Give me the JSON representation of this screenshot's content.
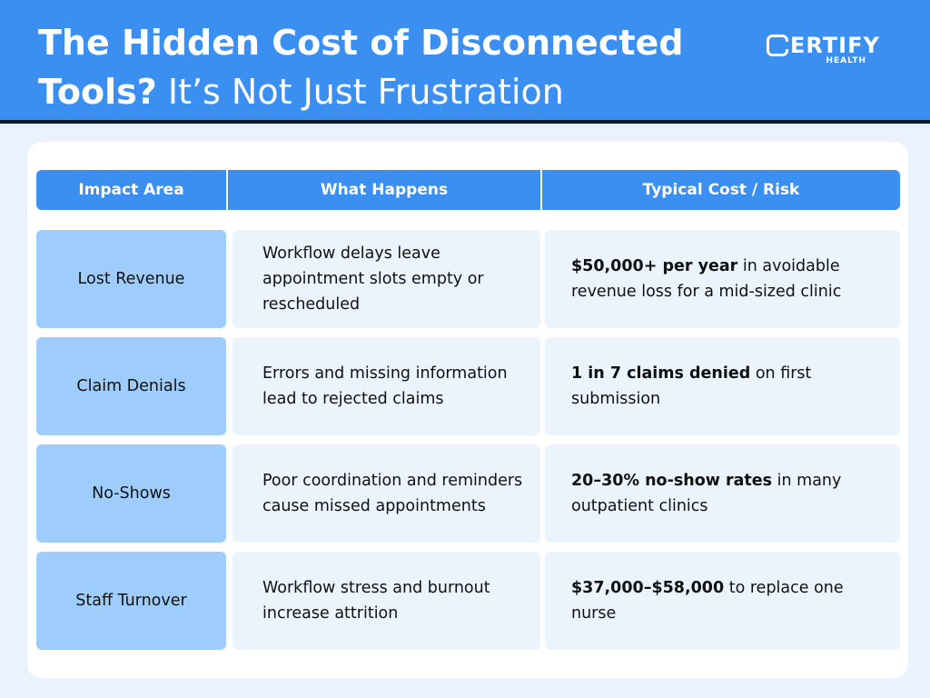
{
  "header": {
    "title_line1": "The Hidden Cost of Disconnected",
    "title_line2_bold": "Tools?",
    "title_line2_light": " It’s Not Just Frustration",
    "logo_text": "ERTIFY",
    "logo_sub": "HEALTH",
    "accent_color": "#3b8ff0"
  },
  "table": {
    "columns": [
      "Impact Area",
      "What Happens",
      "Typical Cost / Risk"
    ],
    "rows": [
      {
        "area": "Lost Revenue",
        "happens": "Workflow delays leave appointment slots empty or rescheduled",
        "cost_bold": "$50,000+ per year",
        "cost_rest": " in avoidable revenue loss for a mid-sized clinic"
      },
      {
        "area": "Claim Denials",
        "happens": "Errors and missing information lead to rejected claims",
        "cost_bold": "1 in 7 claims denied",
        "cost_rest": " on first submission"
      },
      {
        "area": "No-Shows",
        "happens": "Poor coordination and reminders cause missed appointments",
        "cost_bold": "20–30% no-show rates",
        "cost_rest": " in many outpatient clinics"
      },
      {
        "area": "Staff Turnover",
        "happens": "Workflow stress and burnout increase attrition",
        "cost_bold": "$37,000–$58,000",
        "cost_rest": " to replace one nurse"
      }
    ]
  }
}
